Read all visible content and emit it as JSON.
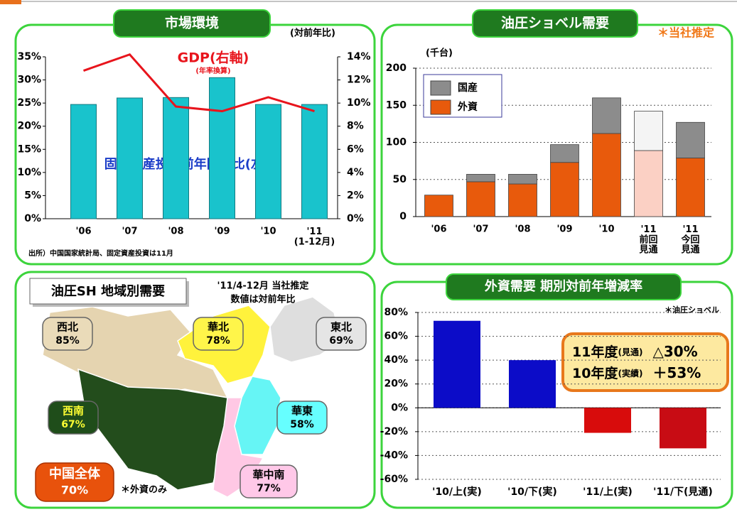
{
  "chart_data": [
    {
      "type": "combo",
      "title": "市場環境",
      "subtitle": "(対前年比)",
      "categories": [
        "'06",
        "'07",
        "'08",
        "'09",
        "'10",
        "'11\n(1-12月)"
      ],
      "series": [
        {
          "name": "固定資産投資前年同期比(左軸)",
          "type": "bar",
          "color": "#19c3cc",
          "values": [
            24.7,
            26.1,
            26.2,
            30.5,
            24.7,
            24.7
          ]
        },
        {
          "name": "GDP(右軸)",
          "type": "line",
          "axis": "y2",
          "color": "#e8141c",
          "values": [
            12.8,
            14.2,
            9.7,
            9.3,
            10.5,
            9.3
          ],
          "note": "(年率換算)"
        }
      ],
      "ylim": [
        0,
        35
      ],
      "yticks": [
        {
          "value": 0,
          "label": "0%"
        },
        {
          "value": 5,
          "label": "5%"
        },
        {
          "value": 10,
          "label": "10%"
        },
        {
          "value": 15,
          "label": "15%"
        },
        {
          "value": 20,
          "label": "20%"
        },
        {
          "value": 25,
          "label": "25%"
        },
        {
          "value": 30,
          "label": "30%"
        },
        {
          "value": 35,
          "label": "35%"
        }
      ],
      "y2lim": [
        0,
        14
      ],
      "y2ticks": [
        {
          "value": 0,
          "label": "0%"
        },
        {
          "value": 2,
          "label": "2%"
        },
        {
          "value": 4,
          "label": "4%"
        },
        {
          "value": 6,
          "label": "6%"
        },
        {
          "value": 8,
          "label": "8%"
        },
        {
          "value": 10,
          "label": "10%"
        },
        {
          "value": 12,
          "label": "12%"
        },
        {
          "value": 14,
          "label": "14%"
        }
      ],
      "grid": false,
      "source": "出所）中国国家統計局、固定資産投資は11月"
    },
    {
      "type": "bar",
      "stacked": true,
      "title": "油圧ショベル需要",
      "subtitle": "＊当社推定",
      "unit": "(千台)",
      "categories": [
        "'06",
        "'07",
        "'08",
        "'09",
        "'10",
        "'11\n前回\n見通",
        "'11\n今回\n見通"
      ],
      "series": [
        {
          "name": "外資",
          "color": "#e85a0c",
          "colors": [
            "#e85a0c",
            "#e85a0c",
            "#e85a0c",
            "#e85a0c",
            "#e85a0c",
            "#fbd0c4",
            "#e85a0c"
          ],
          "values": [
            29,
            47,
            44,
            73,
            112,
            89,
            79
          ]
        },
        {
          "name": "国産",
          "color": "#8c8c8c",
          "colors": [
            "#8c8c8c",
            "#8c8c8c",
            "#8c8c8c",
            "#8c8c8c",
            "#8c8c8c",
            "#f4f4f4",
            "#8c8c8c"
          ],
          "values": [
            0,
            10,
            13,
            24,
            48,
            53,
            48
          ]
        }
      ],
      "ylim": [
        0,
        200
      ],
      "yticks": [
        0,
        50,
        100,
        150,
        200
      ],
      "grid": true
    },
    {
      "type": "bar",
      "title": "外資需要 期別対前年増減率",
      "subtitle": "＊油圧ショベル",
      "categories": [
        "'10/上(実)",
        "'10/下(実)",
        "'11/上(実)",
        "'11/下(見通)"
      ],
      "values": [
        73,
        40,
        -21,
        -34
      ],
      "colors": [
        "#0c0cc8",
        "#0c0cc8",
        "#d80c0c",
        "#c80c14"
      ],
      "ylim": [
        -60,
        80
      ],
      "yticks": [
        {
          "value": -60,
          "label": "-60%"
        },
        {
          "value": -40,
          "label": "-40%"
        },
        {
          "value": -20,
          "label": "-20%"
        },
        {
          "value": 0,
          "label": "0%"
        },
        {
          "value": 20,
          "label": "20%"
        },
        {
          "value": 40,
          "label": "40%"
        },
        {
          "value": 60,
          "label": "60%"
        },
        {
          "value": 80,
          "label": "80%"
        }
      ],
      "grid": true,
      "annotation": [
        {
          "label": "11年度",
          "note": "(見通)",
          "value": "△30%"
        },
        {
          "label": "10年度",
          "note": "(実績)",
          "value": "＋53%"
        }
      ]
    }
  ],
  "map": {
    "title": "油圧SH 地域別需要",
    "note": [
      "'11/4-12月 当社推定",
      "数値は対前年比"
    ],
    "regions": [
      {
        "name": "西北",
        "value": "85%"
      },
      {
        "name": "華北",
        "value": "78%"
      },
      {
        "name": "東北",
        "value": "69%"
      },
      {
        "name": "西南",
        "value": "67%"
      },
      {
        "name": "華東",
        "value": "58%"
      },
      {
        "name": "華中南",
        "value": "77%"
      }
    ],
    "total": {
      "name": "中国全体",
      "value": "70%"
    },
    "footnote": "＊外資のみ"
  }
}
